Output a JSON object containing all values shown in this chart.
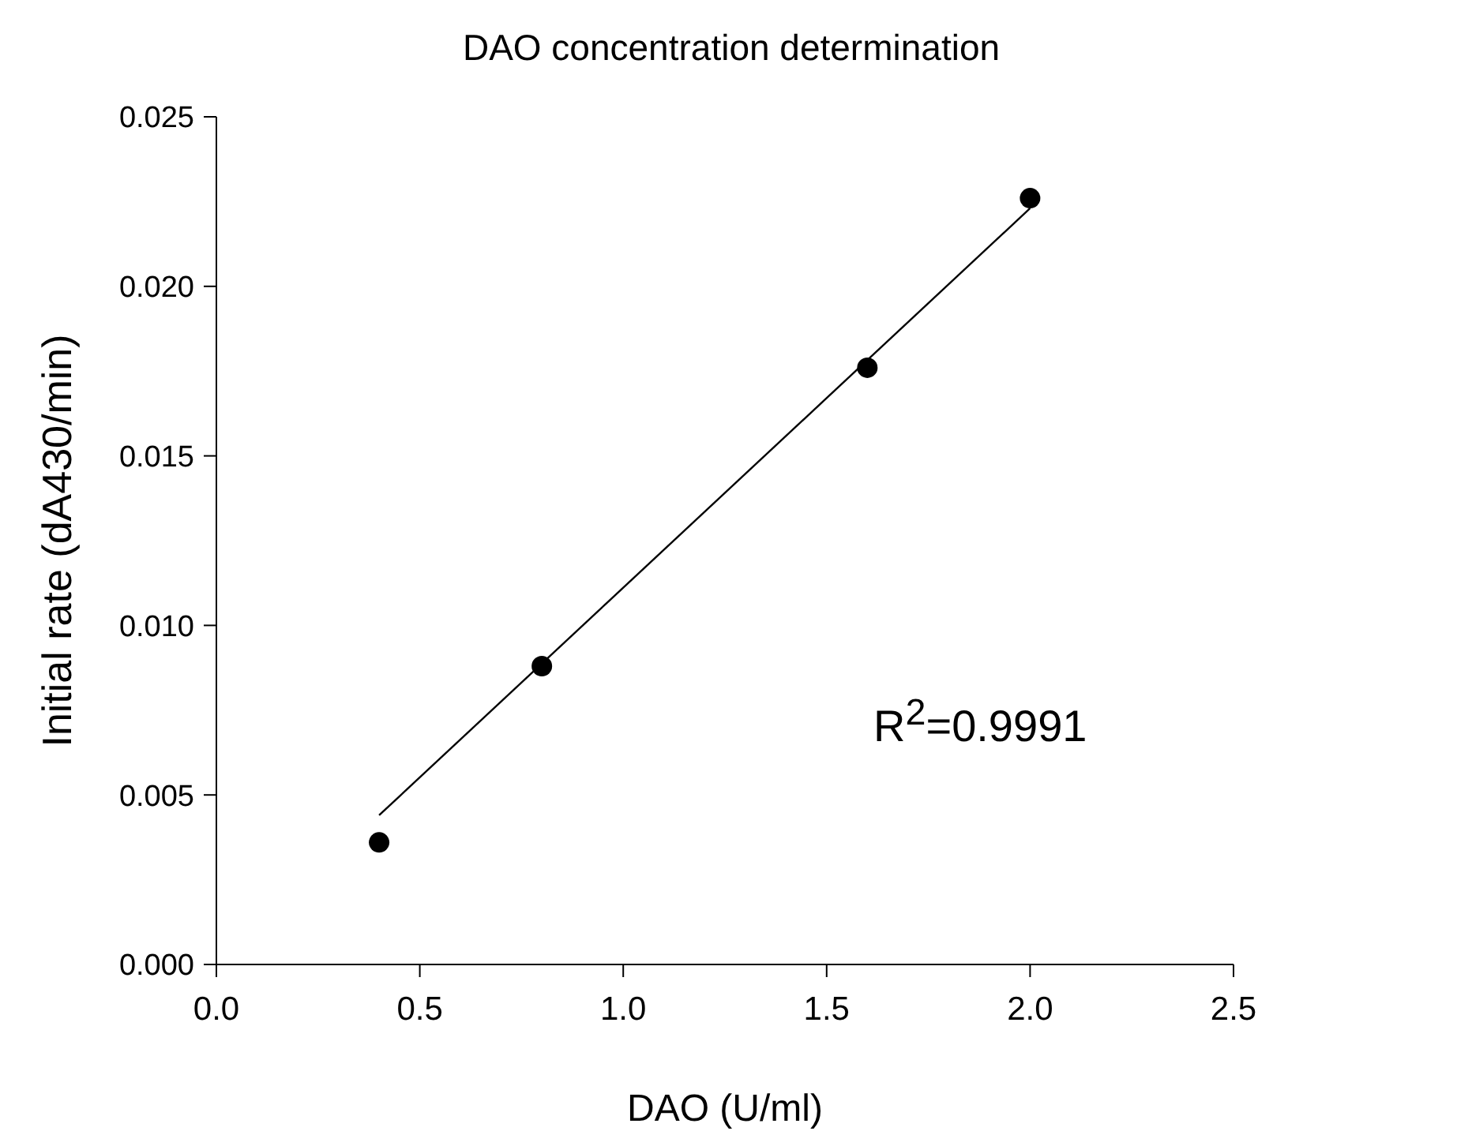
{
  "chart_data": {
    "type": "scatter",
    "title": "DAO concentration determination",
    "xlabel": "DAO (U/ml)",
    "ylabel": "Initial rate (dA430/min)",
    "x": [
      0.4,
      0.8,
      1.6,
      2.0
    ],
    "series": [
      {
        "type": "scatter",
        "color": "#000000",
        "values": [
          0.0036,
          0.0088,
          0.0176,
          0.0226
        ],
        "marker": "circle"
      },
      {
        "type": "line",
        "color": "#000000",
        "x": [
          0.4,
          2.0
        ],
        "values": [
          0.0044,
          0.0223
        ],
        "marker": "none",
        "line_style": "solid"
      }
    ],
    "xlim": [
      0,
      2.5
    ],
    "ylim": [
      0,
      0.025
    ],
    "xticks": [
      {
        "value": 0,
        "label": "0.0"
      },
      {
        "value": 0.5,
        "label": "0.5"
      },
      {
        "value": 1,
        "label": "1.0"
      },
      {
        "value": 1.5,
        "label": "1.5"
      },
      {
        "value": 2,
        "label": "2.0"
      },
      {
        "value": 2.5,
        "label": "2.5"
      }
    ],
    "yticks": [
      {
        "value": 0,
        "label": "0.000"
      },
      {
        "value": 0.005,
        "label": "0.005"
      },
      {
        "value": 0.01,
        "label": "0.010"
      },
      {
        "value": 0.015,
        "label": "0.015"
      },
      {
        "value": 0.02,
        "label": "0.020"
      },
      {
        "value": 0.025,
        "label": "0.025"
      }
    ],
    "annotations": [
      "R$^{2}$=0.9991"
    ],
    "grid": false,
    "legend": false
  }
}
